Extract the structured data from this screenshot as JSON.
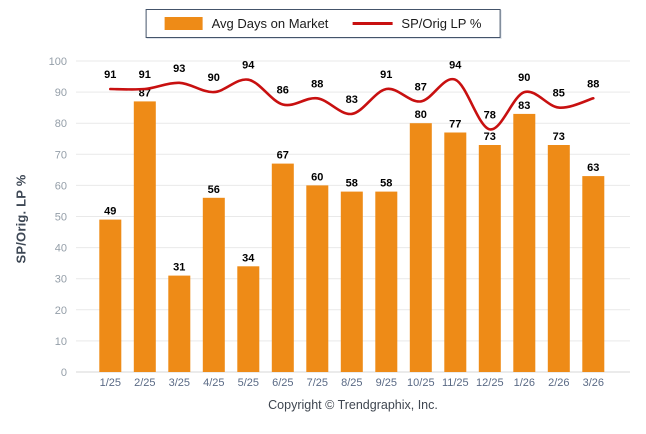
{
  "legend": {
    "items": [
      {
        "label": "Avg Days on Market",
        "marker": "orange-square",
        "color": "#EE8B17"
      },
      {
        "label": "SP/Orig LP %",
        "marker": "red-line",
        "color": "#C81010"
      }
    ]
  },
  "chart_data": {
    "type": "bar",
    "categories": [
      "1/25",
      "2/25",
      "3/25",
      "4/25",
      "5/25",
      "6/25",
      "7/25",
      "8/25",
      "9/25",
      "10/25",
      "11/25",
      "12/25",
      "1/26",
      "2/26",
      "3/26"
    ],
    "series": [
      {
        "name": "Avg Days on Market",
        "type": "bar",
        "color": "#EE8B17",
        "values": [
          49,
          87,
          31,
          56,
          34,
          67,
          60,
          58,
          58,
          80,
          77,
          73,
          83,
          73,
          63
        ]
      },
      {
        "name": "SP/Orig LP %",
        "type": "line",
        "color": "#C81010",
        "values": [
          91,
          91,
          93,
          90,
          94,
          86,
          88,
          83,
          91,
          87,
          94,
          78,
          90,
          85,
          88
        ]
      }
    ],
    "title": "",
    "xlabel": "",
    "ylabel": "SP/Orig. LP %",
    "ylim": [
      0,
      100
    ],
    "y_tick_step": 10,
    "grid": true,
    "data_labels": true,
    "legend_position": "top-center",
    "label_color": "#000000",
    "grid_color": "#e9e9e9",
    "baseline_color": "#d7d7d7",
    "y_tick_color": "#949ea8",
    "x_tick_color": "#5a6a85"
  },
  "footer": {
    "copyright": "Copyright © Trendgraphix, Inc."
  }
}
